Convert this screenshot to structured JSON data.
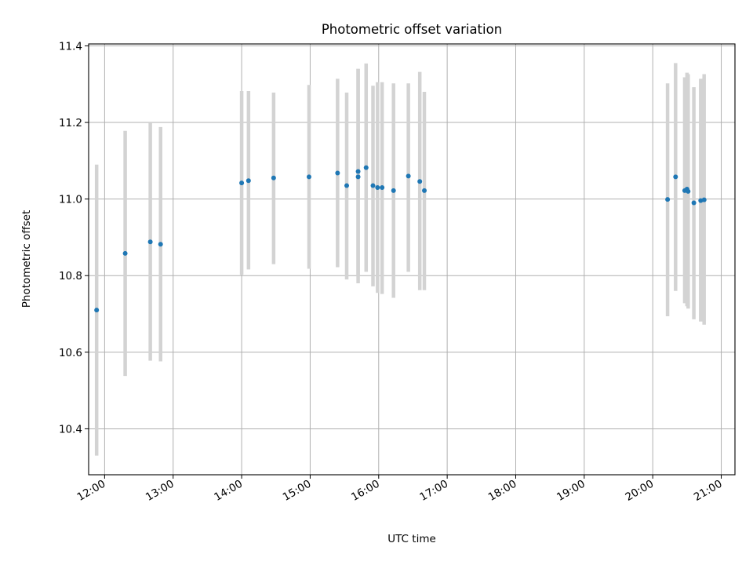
{
  "chart_data": {
    "type": "scatter",
    "title": "Photometric offset variation",
    "xlabel": "UTC time",
    "ylabel": "Photometric offset",
    "xlim": [
      "11:46",
      "21:12"
    ],
    "ylim": [
      10.28,
      11.405
    ],
    "grid": true,
    "x_ticks": [
      "12:00",
      "13:00",
      "14:00",
      "15:00",
      "16:00",
      "17:00",
      "18:00",
      "19:00",
      "20:00",
      "21:00"
    ],
    "y_ticks": [
      "10.4",
      "10.6",
      "10.8",
      "11.0",
      "11.2",
      "11.4"
    ],
    "colors": {
      "points": "#1f77b4",
      "errorbars": "#d3d3d3",
      "grid": "#b0b0b0"
    },
    "series": [
      {
        "points": [
          {
            "x": "11:53",
            "y": 10.71,
            "ylow": 10.33,
            "yhigh": 11.09
          },
          {
            "x": "12:18",
            "y": 10.858,
            "ylow": 10.538,
            "yhigh": 11.178
          },
          {
            "x": "12:40",
            "y": 10.888,
            "ylow": 10.578,
            "yhigh": 11.2
          },
          {
            "x": "12:49",
            "y": 10.882,
            "ylow": 10.576,
            "yhigh": 11.188
          },
          {
            "x": "14:00",
            "y": 11.042,
            "ylow": 10.802,
            "yhigh": 11.282
          },
          {
            "x": "14:06",
            "y": 11.048,
            "ylow": 10.816,
            "yhigh": 11.282
          },
          {
            "x": "14:28",
            "y": 11.055,
            "ylow": 10.83,
            "yhigh": 11.278
          },
          {
            "x": "14:59",
            "y": 11.058,
            "ylow": 10.818,
            "yhigh": 11.298
          },
          {
            "x": "15:24",
            "y": 11.068,
            "ylow": 10.822,
            "yhigh": 11.314
          },
          {
            "x": "15:32",
            "y": 11.035,
            "ylow": 10.79,
            "yhigh": 11.278
          },
          {
            "x": "15:42",
            "y": 11.058,
            "ylow": 10.78,
            "yhigh": 11.34
          },
          {
            "x": "15:42",
            "y": 11.072,
            "ylow": 10.8,
            "yhigh": 11.34
          },
          {
            "x": "15:49",
            "y": 11.082,
            "ylow": 10.81,
            "yhigh": 11.354
          },
          {
            "x": "15:55",
            "y": 11.035,
            "ylow": 10.772,
            "yhigh": 11.296
          },
          {
            "x": "15:59",
            "y": 11.03,
            "ylow": 10.755,
            "yhigh": 11.305
          },
          {
            "x": "16:03",
            "y": 11.03,
            "ylow": 10.752,
            "yhigh": 11.305
          },
          {
            "x": "16:13",
            "y": 11.022,
            "ylow": 10.742,
            "yhigh": 11.302
          },
          {
            "x": "16:26",
            "y": 11.06,
            "ylow": 10.81,
            "yhigh": 11.302
          },
          {
            "x": "16:36",
            "y": 11.046,
            "ylow": 10.762,
            "yhigh": 11.332
          },
          {
            "x": "16:40",
            "y": 11.022,
            "ylow": 10.762,
            "yhigh": 11.28
          },
          {
            "x": "20:13",
            "y": 10.999,
            "ylow": 10.694,
            "yhigh": 11.302
          },
          {
            "x": "20:20",
            "y": 11.058,
            "ylow": 10.76,
            "yhigh": 11.355
          },
          {
            "x": "20:28",
            "y": 11.022,
            "ylow": 10.728,
            "yhigh": 11.318
          },
          {
            "x": "20:30",
            "y": 11.026,
            "ylow": 10.72,
            "yhigh": 11.33
          },
          {
            "x": "20:31",
            "y": 11.02,
            "ylow": 10.714,
            "yhigh": 11.326
          },
          {
            "x": "20:36",
            "y": 10.99,
            "ylow": 10.686,
            "yhigh": 11.292
          },
          {
            "x": "20:42",
            "y": 10.996,
            "ylow": 10.68,
            "yhigh": 11.314
          },
          {
            "x": "20:45",
            "y": 10.998,
            "ylow": 10.672,
            "yhigh": 11.326
          }
        ]
      }
    ]
  }
}
